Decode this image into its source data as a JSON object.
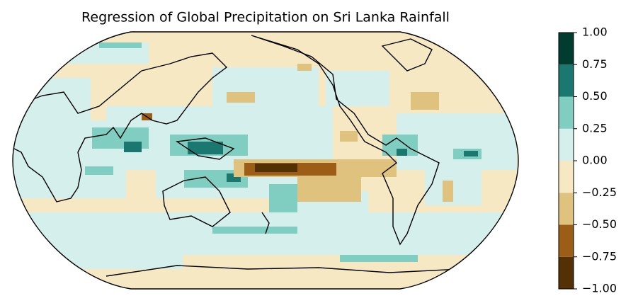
{
  "title": "Regression of Global Precipitation on Sri Lanka Rainfall",
  "colorbar": {
    "lim": [
      -1,
      1
    ],
    "ticks": [
      {
        "value": -1,
        "label": "−1.00"
      },
      {
        "value": -0.75,
        "label": "−0.75"
      },
      {
        "value": -0.5,
        "label": "−0.50"
      },
      {
        "value": -0.25,
        "label": "−0.25"
      },
      {
        "value": 0,
        "label": "0.00"
      },
      {
        "value": 0.25,
        "label": "0.25"
      },
      {
        "value": 0.5,
        "label": "0.50"
      },
      {
        "value": 0.75,
        "label": "0.75"
      },
      {
        "value": 1,
        "label": "1.00"
      }
    ],
    "colors": [
      "#543005",
      "#9c5e16",
      "#dfc27d",
      "#f6e8c3",
      "#d5efed",
      "#80cdc1",
      "#1a7870",
      "#003c30"
    ]
  }
}
